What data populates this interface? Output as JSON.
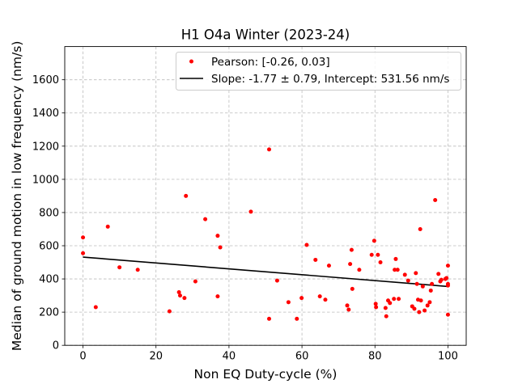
{
  "chart_data": {
    "type": "scatter",
    "title": "H1 O4a Winter (2023-24)",
    "xlabel": "Non EQ Duty-cycle (%)",
    "ylabel": "Median of ground motion in low frequency (nm/s)",
    "xlim": [
      -5,
      105
    ],
    "ylim": [
      0,
      1800
    ],
    "xticks": [
      0,
      20,
      40,
      60,
      80,
      100
    ],
    "yticks": [
      0,
      200,
      400,
      600,
      800,
      1000,
      1200,
      1400,
      1600
    ],
    "grid": true,
    "legend_position": "top-right",
    "colors": {
      "points": "#ff0000",
      "fit_line": "#000000"
    },
    "series": [
      {
        "name": "Pearson: [-0.26, 0.03]",
        "kind": "scatter",
        "x": [
          0,
          0,
          3.5,
          6.8,
          10,
          15,
          23.7,
          26.3,
          26.6,
          27.8,
          28.2,
          30.8,
          33.5,
          36.9,
          36.9,
          37.6,
          46,
          51,
          51,
          53.2,
          56.3,
          58.6,
          59.9,
          61.3,
          63.7,
          64.9,
          66.4,
          67.4,
          72.4,
          72.8,
          73.2,
          73.6,
          73.8,
          75.7,
          79.1,
          79.8,
          80.2,
          80.3,
          80.8,
          81.5,
          82.9,
          83.1,
          83.6,
          84.1,
          85.2,
          85.4,
          85.7,
          86.2,
          86.5,
          88.2,
          89.1,
          90.2,
          90.8,
          91.2,
          91.5,
          91.8,
          92.1,
          92.4,
          92.6,
          93.1,
          93.6,
          94.4,
          95,
          95.3,
          95.6,
          96.5,
          97.4,
          97.9,
          98.2,
          99.3,
          99.6,
          100,
          100,
          100,
          100
        ],
        "y": [
          650,
          555,
          230,
          715,
          470,
          455,
          205,
          320,
          300,
          285,
          900,
          385,
          760,
          295,
          660,
          590,
          805,
          1180,
          160,
          390,
          260,
          160,
          285,
          605,
          515,
          295,
          275,
          480,
          240,
          215,
          490,
          575,
          340,
          455,
          545,
          630,
          250,
          230,
          545,
          500,
          225,
          175,
          270,
          255,
          280,
          455,
          520,
          455,
          280,
          425,
          390,
          235,
          220,
          435,
          370,
          275,
          200,
          700,
          270,
          355,
          210,
          240,
          260,
          330,
          370,
          875,
          430,
          385,
          395,
          400,
          405,
          480,
          360,
          370,
          185
        ]
      },
      {
        "name": "Slope: -1.77 ± 0.79, Intercept: 531.56 nm/s",
        "kind": "line",
        "x": [
          0,
          100
        ],
        "y": [
          531.56,
          354.56
        ]
      }
    ]
  }
}
